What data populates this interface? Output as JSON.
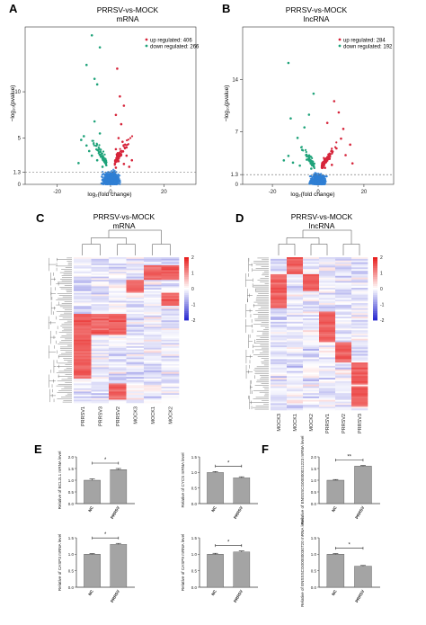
{
  "panels": {
    "A": {
      "letter": "A",
      "title1": "PRRSV-vs-MOCK",
      "title2": "mRNA",
      "legend_up": "up regulated: 406",
      "legend_down": "down regulated: 266",
      "ylabel": "−log₁₀(pvalue)",
      "xlabel": "log₂(fold change)"
    },
    "B": {
      "letter": "B",
      "title1": "PRRSV-vs-MOCK",
      "title2": "lncRNA",
      "legend_up": "up regulated: 284",
      "legend_down": "down regulated: 192",
      "ylabel": "−log₁₀(pvalue)",
      "xlabel": "log₂(fold change)"
    },
    "C": {
      "letter": "C",
      "title1": "PRRSV-vs-MOCK",
      "title2": "mRNA"
    },
    "D": {
      "letter": "D",
      "title1": "PRRSV-vs-MOCK",
      "title2": "lncRNA"
    },
    "E": {
      "letter": "E"
    },
    "F": {
      "letter": "F"
    }
  },
  "colors": {
    "up": "#d6243a",
    "down": "#1fa37a",
    "ns": "#2f7fd4",
    "heat_high": "#e8201f",
    "heat_mid": "#ffffff",
    "heat_low": "#2a2ad0",
    "bar_fill": "#8a8a8a"
  },
  "chart_data": [
    {
      "type": "scatter",
      "panel": "A",
      "x_ticks": [
        "-20",
        "0",
        "20"
      ],
      "x_tick_values": [
        -20,
        0,
        20
      ],
      "y_ticks": [
        "0",
        "1.3",
        "5",
        "10"
      ],
      "y_tick_values": [
        0,
        1.3,
        5,
        10
      ],
      "xlim": [
        -32,
        32
      ],
      "ylim": [
        0,
        17
      ],
      "threshold_y": 1.3,
      "series": [
        {
          "name": "up regulated: 406",
          "points": [
            [
              2,
              1.8
            ],
            [
              3,
              2.5
            ],
            [
              4,
              3.2
            ],
            [
              5,
              2.2
            ],
            [
              6,
              4
            ],
            [
              7,
              1.9
            ],
            [
              3,
              5
            ],
            [
              4,
              6.5
            ],
            [
              2,
              7.5
            ],
            [
              5,
              8.5
            ],
            [
              3.5,
              9.5
            ],
            [
              2.5,
              12.5
            ],
            [
              6,
              3.1
            ],
            [
              8,
              2.6
            ],
            [
              4.5,
              4.6
            ],
            [
              2,
              3.8
            ]
          ]
        },
        {
          "name": "down regulated: 266",
          "points": [
            [
              -3,
              1.9
            ],
            [
              -5,
              2.6
            ],
            [
              -7,
              3.1
            ],
            [
              -9,
              4.2
            ],
            [
              -4,
              5.5
            ],
            [
              -6,
              6.8
            ],
            [
              -8,
              3.6
            ],
            [
              -10,
              5.2
            ],
            [
              -5,
              10.8
            ],
            [
              -6,
              11.4
            ],
            [
              -12,
              2.3
            ],
            [
              -3,
              2.8
            ],
            [
              -9,
              12.9
            ],
            [
              -7,
              16.1
            ],
            [
              -4,
              14.8
            ],
            [
              -11,
              4.8
            ]
          ]
        }
      ]
    },
    {
      "type": "scatter",
      "panel": "B",
      "x_ticks": [
        "-20",
        "0",
        "20"
      ],
      "x_tick_values": [
        -20,
        0,
        20
      ],
      "y_ticks": [
        "0",
        "1.3",
        "7",
        "14"
      ],
      "y_tick_values": [
        0,
        1.3,
        7,
        14
      ],
      "xlim": [
        -33,
        33
      ],
      "ylim": [
        0,
        21
      ],
      "threshold_y": 1.3,
      "series": [
        {
          "name": "up regulated: 284",
          "points": [
            [
              3,
              2.2
            ],
            [
              5,
              3.4
            ],
            [
              8,
              4.8
            ],
            [
              10,
              6.1
            ],
            [
              12,
              3.9
            ],
            [
              6,
              2.6
            ],
            [
              4,
              8.2
            ],
            [
              9,
              9.6
            ],
            [
              14,
              5.3
            ],
            [
              7,
              11.1
            ],
            [
              11,
              7.4
            ],
            [
              15,
              2.8
            ]
          ]
        },
        {
          "name": "down regulated: 192",
          "points": [
            [
              -3,
              2.1
            ],
            [
              -5,
              3.3
            ],
            [
              -7,
              4.6
            ],
            [
              -9,
              6.2
            ],
            [
              -11,
              2.9
            ],
            [
              -13,
              3.8
            ],
            [
              -6,
              7.6
            ],
            [
              -4,
              9.3
            ],
            [
              -2,
              12.1
            ],
            [
              -12,
              8.8
            ],
            [
              -8,
              2.5
            ],
            [
              -15,
              3.2
            ],
            [
              -13,
              16.2
            ]
          ]
        }
      ]
    },
    {
      "type": "heatmap",
      "panel": "C",
      "columns": [
        "PRRSV1",
        "PRRSV3",
        "PRRSV2",
        "MOCK3",
        "MOCK1",
        "MOCK2"
      ],
      "scale_ticks": [
        "2",
        "1",
        "0",
        "-1",
        "-2"
      ]
    },
    {
      "type": "heatmap",
      "panel": "D",
      "columns": [
        "MOCK3",
        "MOCK1",
        "MOCK2",
        "PRRSV1",
        "PRRSV2",
        "PRRSV3"
      ],
      "scale_ticks": [
        "2",
        "1",
        "0",
        "-1",
        "-2"
      ]
    },
    {
      "type": "bar",
      "panel": "E1",
      "categories": [
        "NC",
        "PRRSV"
      ],
      "values": [
        1.0,
        1.45
      ],
      "errors": [
        0.06,
        0.05
      ],
      "ylabel": "Relative of BCL2L1 mRNA level",
      "y_ticks": [
        "0.0",
        "0.5",
        "1.0",
        "1.5",
        "2.0"
      ],
      "ylim": [
        0,
        2
      ],
      "sig": "*"
    },
    {
      "type": "bar",
      "panel": "E2",
      "categories": [
        "NC",
        "PRRSV"
      ],
      "values": [
        1.0,
        0.83
      ],
      "errors": [
        0.03,
        0.03
      ],
      "ylabel": "Relative of CYCS mRNA level",
      "y_ticks": [
        "0.0",
        "0.5",
        "1.0",
        "1.5"
      ],
      "ylim": [
        0,
        1.5
      ],
      "sig": "*"
    },
    {
      "type": "bar",
      "panel": "F1",
      "categories": [
        "NC",
        "PRRSV"
      ],
      "values": [
        1.0,
        1.6
      ],
      "errors": [
        0.03,
        0.03
      ],
      "ylabel": "Relative of ENSSSCG00000021223 mRNA level",
      "y_ticks": [
        "0.0",
        "0.5",
        "1.0",
        "1.5",
        "2.0"
      ],
      "ylim": [
        0,
        2
      ],
      "sig": "**"
    },
    {
      "type": "bar",
      "panel": "E3",
      "categories": [
        "NC",
        "PRRSV"
      ],
      "values": [
        1.0,
        1.3
      ],
      "errors": [
        0.02,
        0.03
      ],
      "ylabel": "Relative of CASP3 mRNA level",
      "y_ticks": [
        "0.0",
        "0.5",
        "1.0",
        "1.5"
      ],
      "ylim": [
        0,
        1.5
      ],
      "sig": "*"
    },
    {
      "type": "bar",
      "panel": "E4",
      "categories": [
        "NC",
        "PRRSV"
      ],
      "values": [
        1.0,
        1.07
      ],
      "errors": [
        0.03,
        0.03
      ],
      "ylabel": "Relative of CASP9 mRNA level",
      "y_ticks": [
        "0.0",
        "0.5",
        "1.0",
        "1.5"
      ],
      "ylim": [
        0,
        1.5
      ],
      "sig": "*"
    },
    {
      "type": "bar",
      "panel": "F2",
      "categories": [
        "NC",
        "PRRSV"
      ],
      "values": [
        1.0,
        0.64
      ],
      "errors": [
        0.02,
        0.02
      ],
      "ylabel": "Relative of ENSSSCG00000030720 mRNA level",
      "y_ticks": [
        "0.0",
        "0.5",
        "1.0",
        "1.5"
      ],
      "ylim": [
        0,
        1.5
      ],
      "sig": "*"
    }
  ]
}
